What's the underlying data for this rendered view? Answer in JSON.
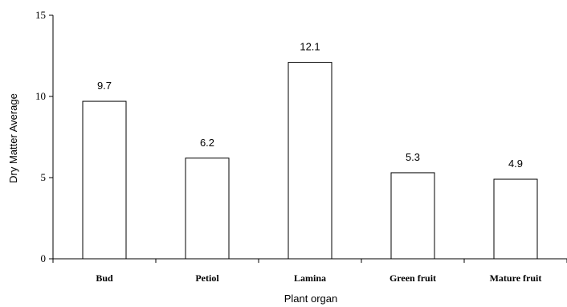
{
  "chart_data": {
    "type": "bar",
    "title": "",
    "xlabel": "Plant organ",
    "ylabel": "Dry Matter Average",
    "categories": [
      "Bud",
      "Petiol",
      "Lamina",
      "Green fruit",
      "Mature fruit"
    ],
    "values": [
      9.7,
      6.2,
      12.1,
      5.3,
      4.9
    ],
    "data_labels": [
      "9.7",
      "6.2",
      "12.1",
      "5.3",
      "4.9"
    ],
    "ylim": [
      0,
      15
    ],
    "yticks": [
      0,
      5,
      10,
      15
    ],
    "grid": false,
    "legend": "none",
    "bar_fill": "#ffffff",
    "bar_stroke": "#000000"
  }
}
